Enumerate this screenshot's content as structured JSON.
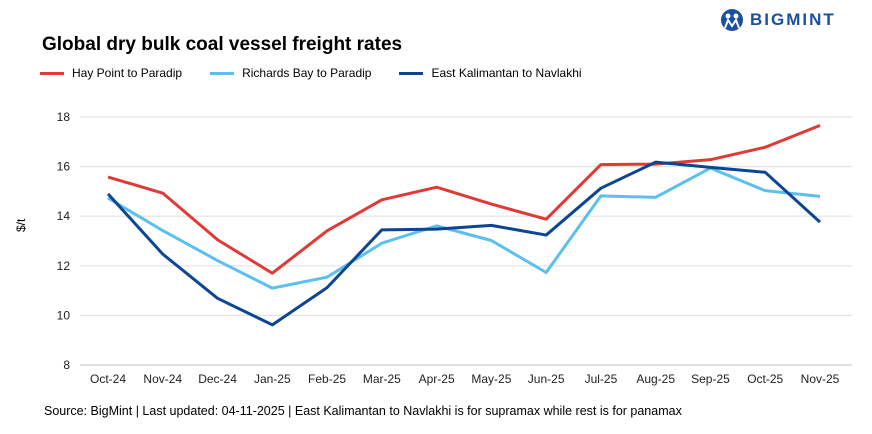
{
  "logo_text": "BIGMINT",
  "chart_data": {
    "type": "line",
    "title": "Global dry bulk coal vessel freight rates",
    "xlabel": "",
    "ylabel": "$/t",
    "ylim": [
      8,
      18
    ],
    "yticks": [
      8,
      10,
      12,
      14,
      16,
      18
    ],
    "grid": true,
    "legend": "top-left",
    "categories": [
      "Oct-24",
      "Nov-24",
      "Dec-24",
      "Jan-25",
      "Feb-25",
      "Mar-25",
      "Apr-25",
      "May-25",
      "Jun-25",
      "Jul-25",
      "Aug-25",
      "Sep-25",
      "Oct-25",
      "Nov-25"
    ],
    "series": [
      {
        "name": "Hay Point to Paradip",
        "color": "#e03a36",
        "values": [
          15.58,
          14.93,
          13.05,
          11.7,
          13.41,
          14.66,
          15.17,
          14.49,
          13.88,
          16.08,
          16.1,
          16.28,
          16.78,
          17.66
        ]
      },
      {
        "name": "Richards Bay to Paradip",
        "color": "#5bc0ee",
        "values": [
          14.73,
          13.42,
          12.21,
          11.1,
          11.54,
          12.91,
          13.61,
          13.02,
          11.73,
          14.82,
          14.76,
          15.94,
          15.03,
          14.8
        ]
      },
      {
        "name": "East Kalimantan to Navlakhi",
        "color": "#0d4593",
        "values": [
          14.9,
          12.47,
          10.69,
          9.62,
          11.12,
          13.45,
          13.48,
          13.63,
          13.24,
          15.13,
          16.18,
          15.97,
          15.77,
          13.76
        ]
      }
    ]
  },
  "source": "Source: BigMint | Last updated: 04-11-2025 | East Kalimantan to Navlakhi is for supramax while rest is for panamax"
}
